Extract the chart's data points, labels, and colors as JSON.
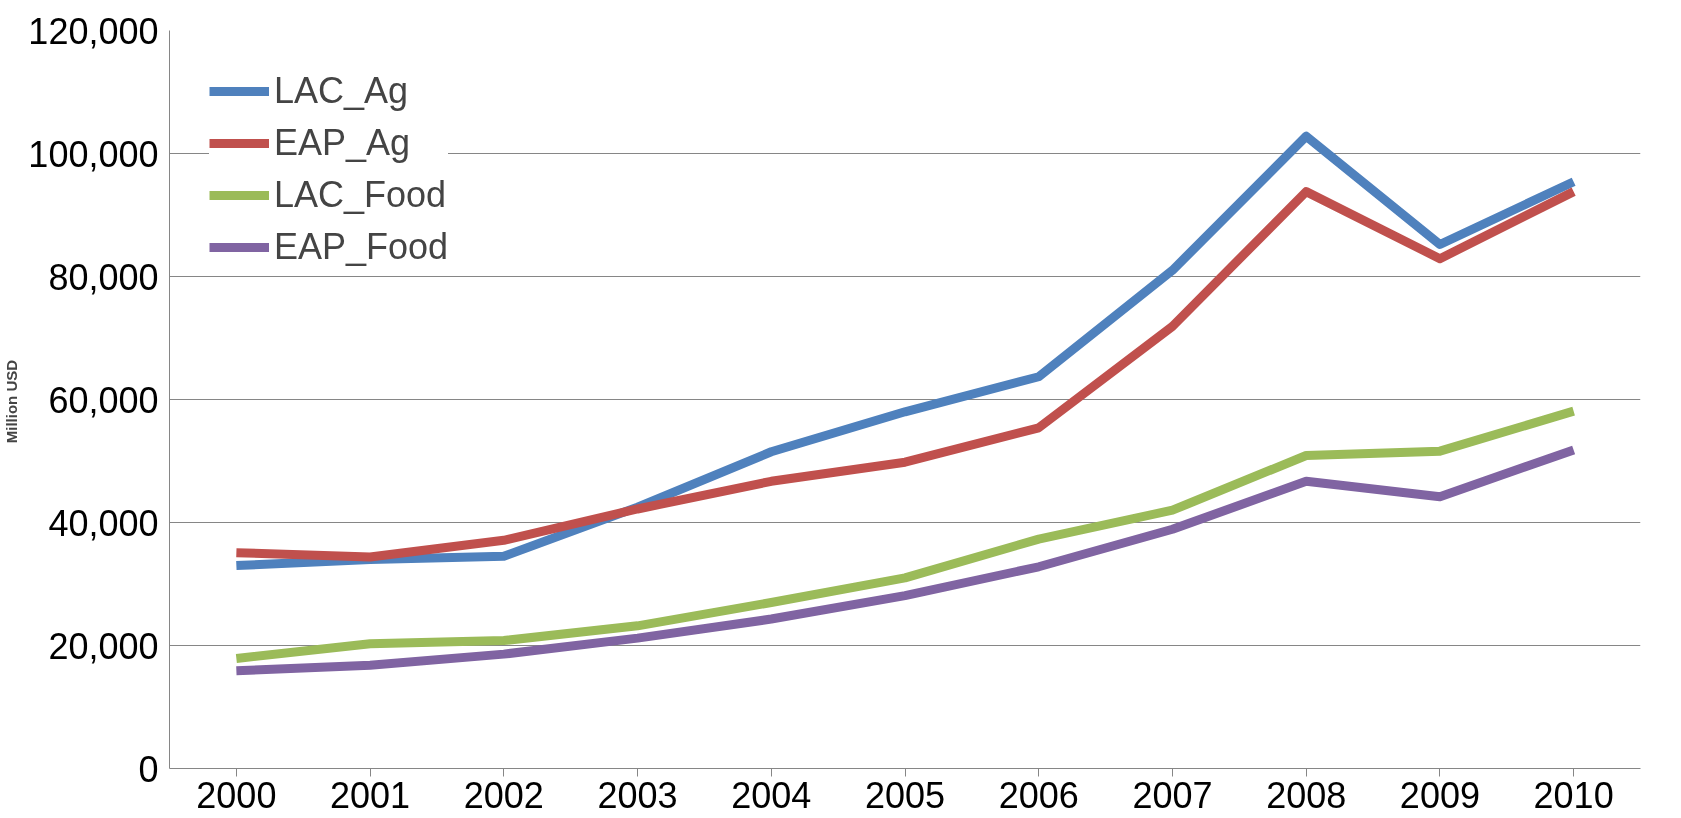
{
  "chart_data": {
    "type": "line",
    "ylabel": "Million  USD",
    "categories": [
      "2000",
      "2001",
      "2002",
      "2003",
      "2004",
      "2005",
      "2006",
      "2007",
      "2008",
      "2009",
      "2010"
    ],
    "series": [
      {
        "name": "LAC_Ag",
        "color": "#4f81bd",
        "values": [
          33000,
          34000,
          34500,
          42500,
          51500,
          58000,
          63700,
          81000,
          102800,
          85200,
          95400
        ]
      },
      {
        "name": "EAP_Ag",
        "color": "#c0504d",
        "values": [
          35100,
          34400,
          37100,
          42200,
          46700,
          49800,
          55400,
          71900,
          93800,
          82900,
          93800
        ]
      },
      {
        "name": "LAC_Food",
        "color": "#9bbb59",
        "values": [
          17900,
          20300,
          20800,
          23200,
          27000,
          31000,
          37300,
          42000,
          50900,
          51600,
          58100
        ]
      },
      {
        "name": "EAP_Food",
        "color": "#8064a2",
        "values": [
          15900,
          16800,
          18600,
          21200,
          24300,
          28100,
          32800,
          38900,
          46700,
          44200,
          51800
        ]
      }
    ],
    "ylim": [
      0,
      120000
    ],
    "yticks": [
      {
        "value": 0,
        "label": "0"
      },
      {
        "value": 20000,
        "label": "20,000"
      },
      {
        "value": 40000,
        "label": "40,000"
      },
      {
        "value": 60000,
        "label": "60,000"
      },
      {
        "value": 80000,
        "label": "80,000"
      },
      {
        "value": 100000,
        "label": "100,000"
      },
      {
        "value": 120000,
        "label": "120,000"
      }
    ],
    "grid": "y",
    "legend": "top left",
    "marker": "none",
    "line_style": "solid"
  }
}
